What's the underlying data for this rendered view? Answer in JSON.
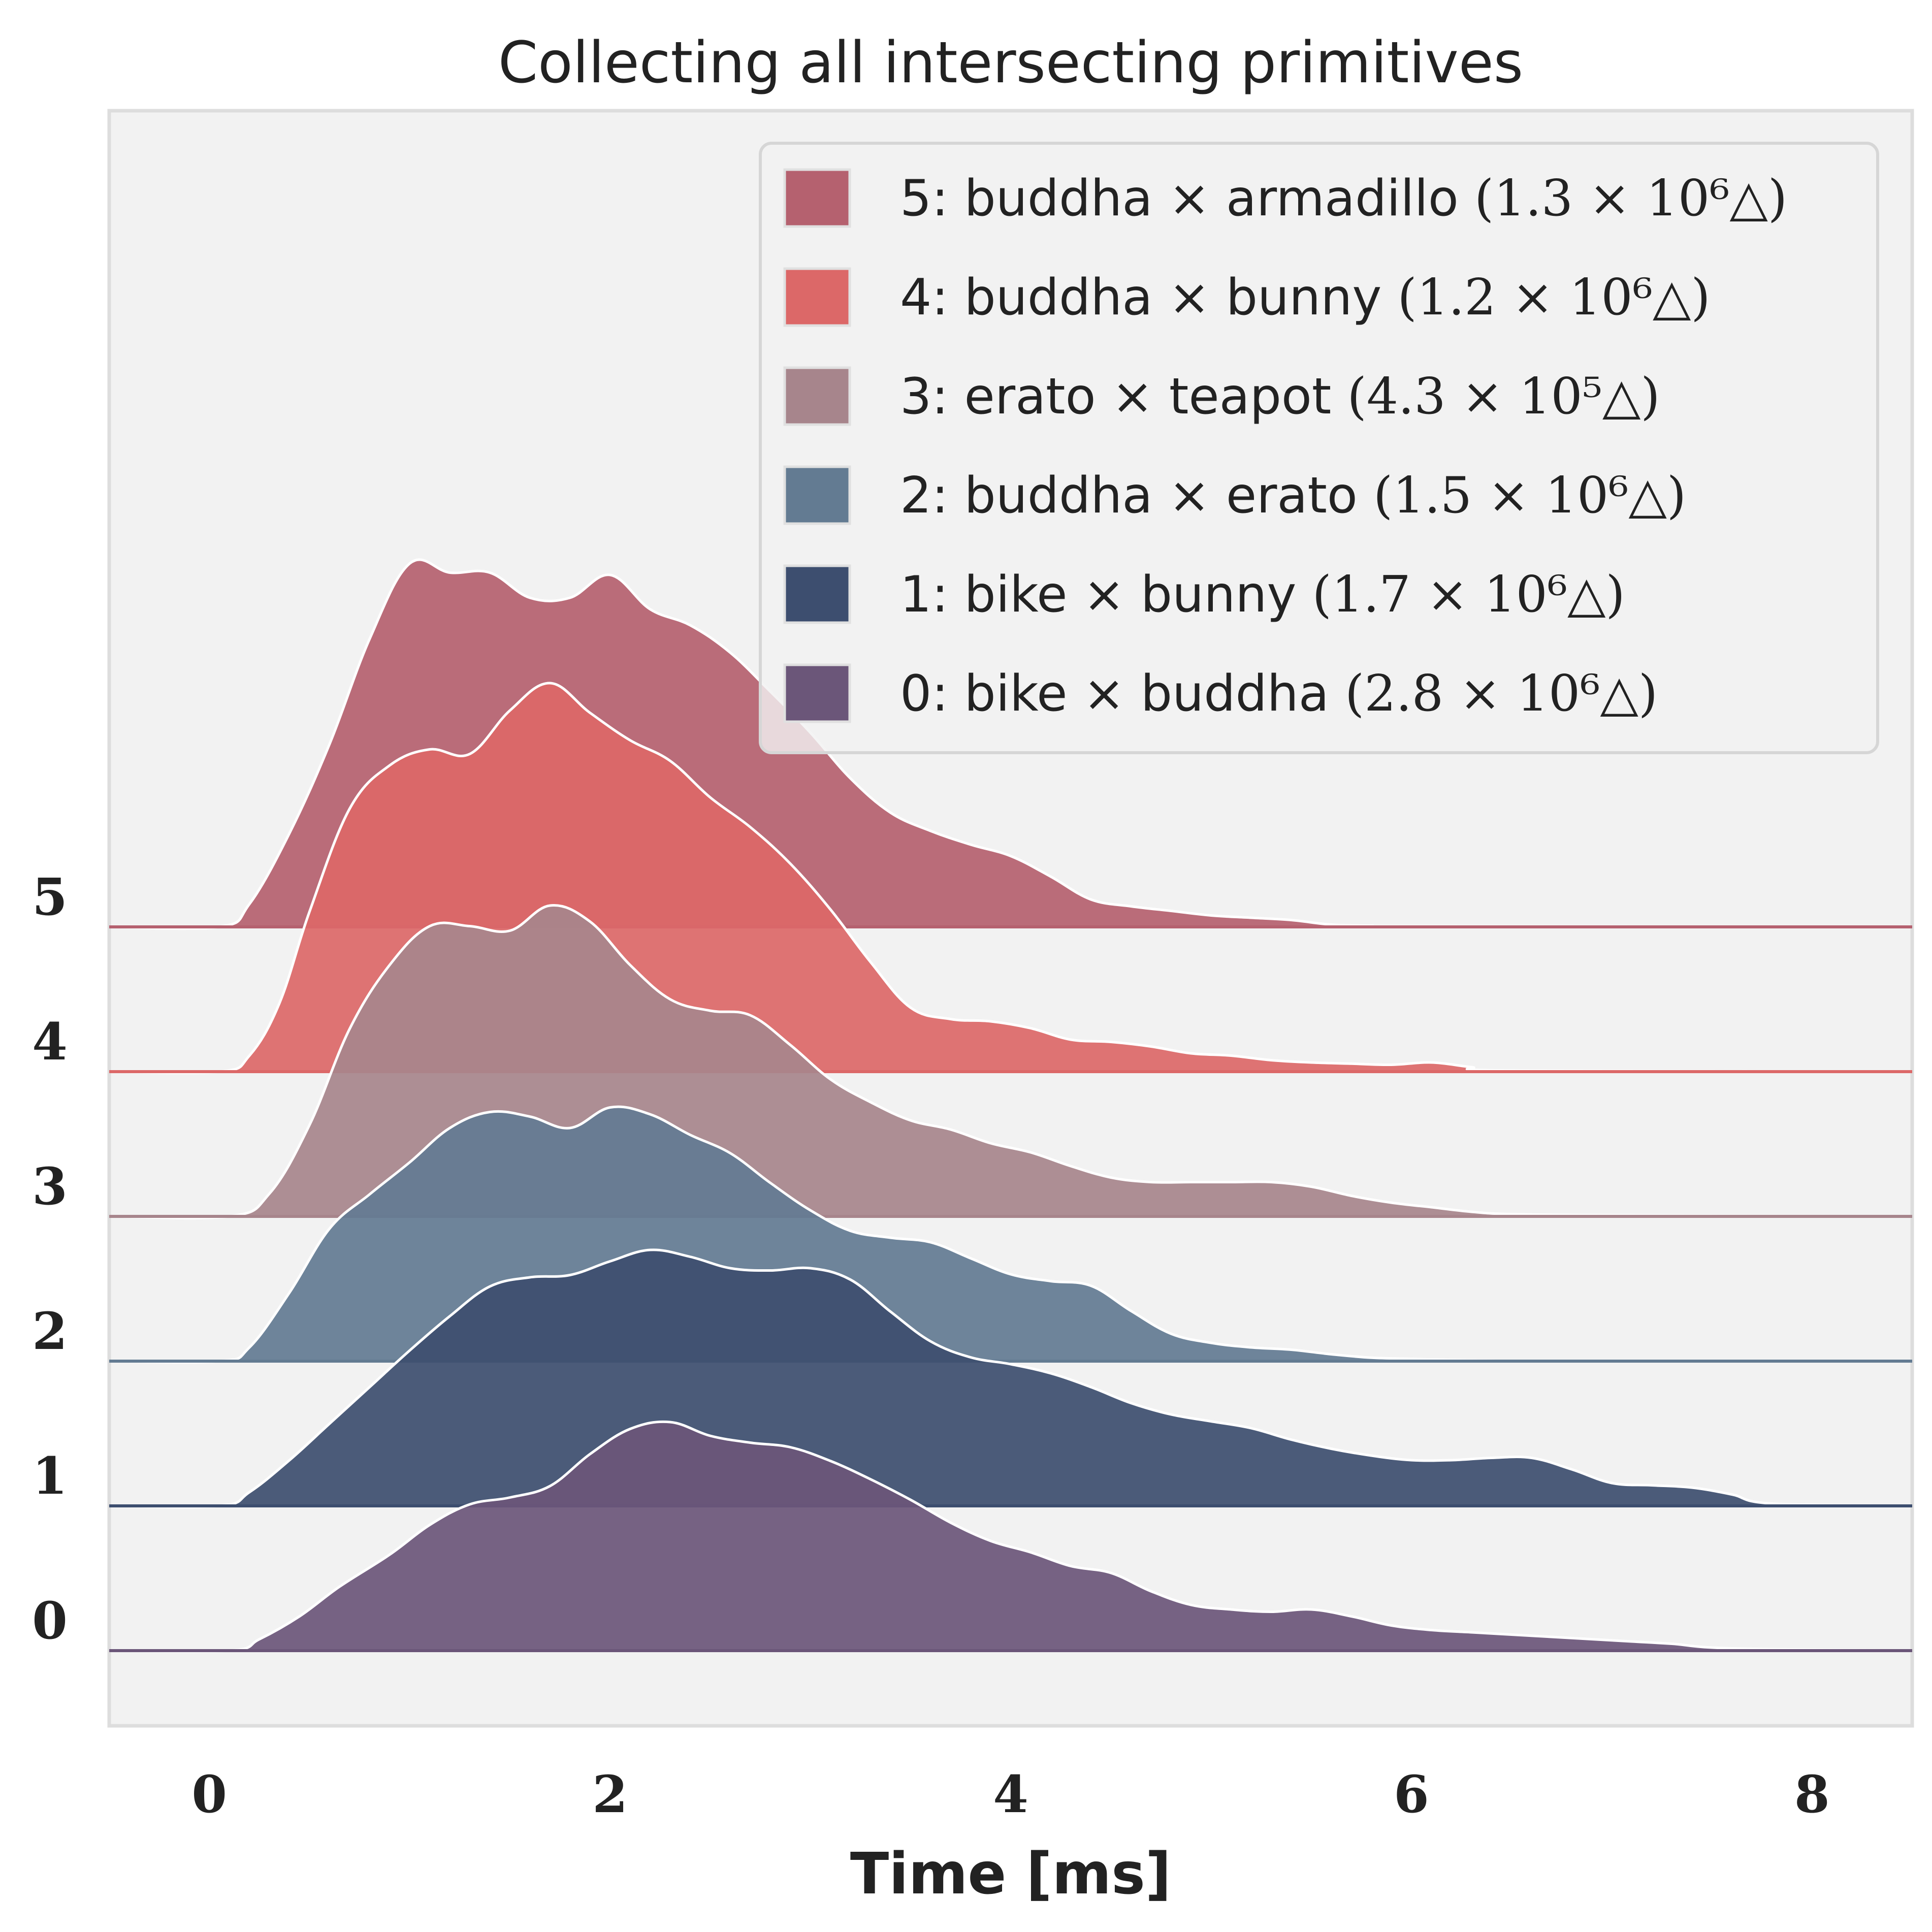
{
  "chart_data": {
    "type": "area",
    "subtype": "ridgeline-kde",
    "title": "Collecting all intersecting primitives",
    "xlabel": "Time [ms]",
    "ylabel": "",
    "xlim": [
      -0.5,
      8.5
    ],
    "xticks": [
      "0",
      "2",
      "4",
      "6",
      "8"
    ],
    "yticks": [
      "0",
      "1",
      "2",
      "3",
      "4",
      "5"
    ],
    "grid": false,
    "legend_position": "top-right",
    "background": "#f2f2f2",
    "series": [
      {
        "id": 0,
        "label": "0: bike × buddha",
        "tri_count": "(2.8 × 10⁶△)",
        "color": "#6b5679",
        "x": [
          -0.5,
          0.1,
          0.25,
          0.45,
          0.65,
          0.9,
          1.1,
          1.3,
          1.5,
          1.7,
          1.9,
          2.1,
          2.3,
          2.5,
          2.7,
          2.9,
          3.1,
          3.3,
          3.5,
          3.7,
          3.9,
          4.1,
          4.3,
          4.5,
          4.7,
          4.9,
          5.1,
          5.3,
          5.5,
          5.7,
          5.9,
          6.1,
          6.3,
          6.5,
          6.7,
          6.9,
          7.1,
          7.3,
          7.6,
          8.5
        ],
        "y": [
          0,
          0,
          0.05,
          0.15,
          0.28,
          0.42,
          0.55,
          0.64,
          0.67,
          0.72,
          0.86,
          0.97,
          1.0,
          0.94,
          0.91,
          0.89,
          0.83,
          0.75,
          0.66,
          0.56,
          0.48,
          0.43,
          0.37,
          0.34,
          0.26,
          0.2,
          0.18,
          0.17,
          0.18,
          0.15,
          0.11,
          0.09,
          0.08,
          0.07,
          0.06,
          0.05,
          0.04,
          0.03,
          0.01,
          0
        ]
      },
      {
        "id": 1,
        "label": "1: bike × bunny",
        "tri_count": "(1.7 × 10⁶△)",
        "color": "#3d4e6f",
        "x": [
          -0.5,
          0.05,
          0.2,
          0.4,
          0.6,
          0.8,
          1.0,
          1.2,
          1.4,
          1.6,
          1.8,
          2.0,
          2.2,
          2.4,
          2.6,
          2.8,
          3.0,
          3.2,
          3.4,
          3.6,
          3.8,
          4.0,
          4.2,
          4.4,
          4.6,
          4.8,
          5.0,
          5.2,
          5.4,
          5.6,
          5.8,
          6.0,
          6.2,
          6.4,
          6.6,
          6.8,
          7.0,
          7.2,
          7.4,
          7.6,
          7.8,
          8.5
        ],
        "y": [
          0,
          0,
          0.06,
          0.2,
          0.36,
          0.52,
          0.68,
          0.83,
          0.96,
          1.0,
          1.01,
          1.07,
          1.12,
          1.09,
          1.04,
          1.03,
          1.04,
          0.99,
          0.85,
          0.72,
          0.65,
          0.62,
          0.58,
          0.52,
          0.45,
          0.4,
          0.37,
          0.34,
          0.29,
          0.25,
          0.22,
          0.2,
          0.2,
          0.21,
          0.21,
          0.16,
          0.1,
          0.09,
          0.08,
          0.05,
          0.01,
          0
        ]
      },
      {
        "id": 2,
        "label": "2: buddha × erato",
        "tri_count": "(1.5 × 10⁶△)",
        "color": "#637b92",
        "x": [
          -0.5,
          0.05,
          0.2,
          0.4,
          0.6,
          0.8,
          1.0,
          1.2,
          1.4,
          1.6,
          1.8,
          2.0,
          2.2,
          2.4,
          2.6,
          2.8,
          3.0,
          3.2,
          3.4,
          3.6,
          3.8,
          4.0,
          4.2,
          4.4,
          4.6,
          4.8,
          5.0,
          5.2,
          5.4,
          5.6,
          5.8,
          6.0,
          6.2,
          6.4,
          6.6,
          8.5
        ],
        "y": [
          0,
          0,
          0.06,
          0.3,
          0.58,
          0.73,
          0.87,
          1.02,
          1.09,
          1.07,
          1.02,
          1.11,
          1.08,
          0.99,
          0.91,
          0.78,
          0.66,
          0.57,
          0.54,
          0.52,
          0.45,
          0.38,
          0.35,
          0.33,
          0.22,
          0.12,
          0.08,
          0.06,
          0.05,
          0.03,
          0.015,
          0.01,
          0.005,
          0.002,
          0,
          0
        ]
      },
      {
        "id": 3,
        "label": "3: erato × teapot",
        "tri_count": "(4.3 × 10⁵△)",
        "color": "#a7858c",
        "x": [
          -0.5,
          0.1,
          0.3,
          0.5,
          0.7,
          0.9,
          1.1,
          1.3,
          1.5,
          1.7,
          1.9,
          2.1,
          2.3,
          2.5,
          2.7,
          2.9,
          3.1,
          3.3,
          3.5,
          3.7,
          3.9,
          4.1,
          4.3,
          4.5,
          4.7,
          4.9,
          5.1,
          5.3,
          5.5,
          5.7,
          5.9,
          6.1,
          6.3,
          6.5,
          7.0,
          8.5
        ],
        "y": [
          0,
          0,
          0.1,
          0.4,
          0.82,
          1.1,
          1.27,
          1.27,
          1.25,
          1.36,
          1.29,
          1.1,
          0.95,
          0.9,
          0.88,
          0.75,
          0.6,
          0.5,
          0.42,
          0.38,
          0.32,
          0.28,
          0.22,
          0.17,
          0.15,
          0.15,
          0.15,
          0.15,
          0.13,
          0.09,
          0.06,
          0.04,
          0.02,
          0.01,
          0.005,
          0
        ]
      },
      {
        "id": 4,
        "label": "4: buddha × bunny",
        "tri_count": "(1.2 × 10⁶△)",
        "color": "#dc6868",
        "x": [
          -0.5,
          0.05,
          0.2,
          0.35,
          0.5,
          0.7,
          0.9,
          1.1,
          1.3,
          1.5,
          1.7,
          1.9,
          2.1,
          2.3,
          2.5,
          2.7,
          2.9,
          3.1,
          3.3,
          3.5,
          3.7,
          3.9,
          4.1,
          4.3,
          4.5,
          4.7,
          4.9,
          5.1,
          5.3,
          5.5,
          5.7,
          5.9,
          6.1,
          6.3,
          6.5,
          8.5
        ],
        "y": [
          0,
          0,
          0.07,
          0.3,
          0.7,
          1.15,
          1.34,
          1.41,
          1.39,
          1.58,
          1.7,
          1.57,
          1.45,
          1.36,
          1.2,
          1.07,
          0.91,
          0.71,
          0.48,
          0.28,
          0.23,
          0.22,
          0.19,
          0.14,
          0.13,
          0.11,
          0.08,
          0.07,
          0.05,
          0.04,
          0.035,
          0.03,
          0.04,
          0.02,
          0.005,
          0
        ]
      },
      {
        "id": 5,
        "label": "5: buddha × armadillo",
        "tri_count": "(1.3 × 10⁶△)",
        "color": "#b5616f",
        "x": [
          -0.5,
          0.05,
          0.2,
          0.4,
          0.6,
          0.8,
          1.0,
          1.2,
          1.4,
          1.6,
          1.8,
          2.0,
          2.2,
          2.4,
          2.6,
          2.8,
          3.0,
          3.2,
          3.4,
          3.6,
          3.8,
          4.0,
          4.2,
          4.4,
          4.6,
          4.8,
          5.0,
          5.2,
          5.4,
          5.6,
          5.8,
          6.0,
          8.5
        ],
        "y": [
          0,
          0,
          0.1,
          0.41,
          0.8,
          1.26,
          1.59,
          1.55,
          1.55,
          1.44,
          1.44,
          1.54,
          1.39,
          1.32,
          1.2,
          1.03,
          0.85,
          0.65,
          0.5,
          0.42,
          0.36,
          0.31,
          0.22,
          0.12,
          0.09,
          0.07,
          0.05,
          0.04,
          0.03,
          0.01,
          0.005,
          0.003,
          0
        ]
      }
    ]
  }
}
